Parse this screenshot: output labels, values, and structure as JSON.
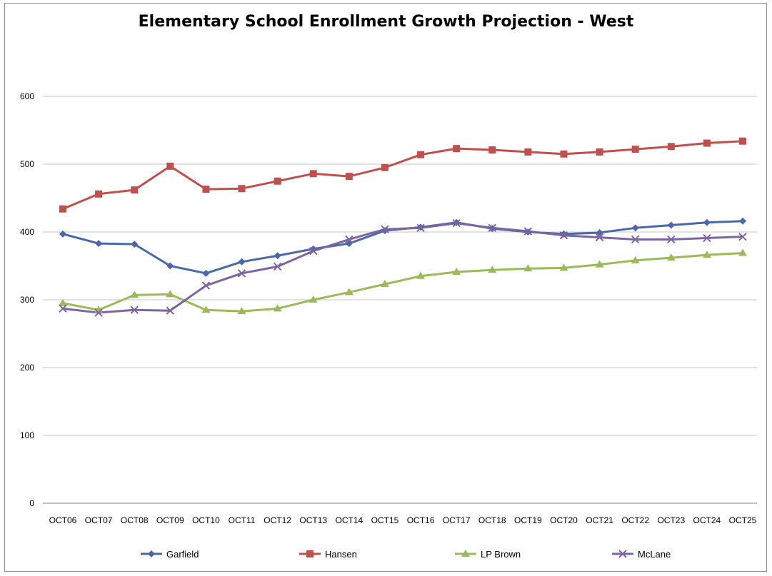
{
  "chart_data": {
    "type": "line",
    "title": "Elementary School Enrollment Growth Projection - West",
    "xlabel": "",
    "ylabel": "",
    "ylim": [
      0,
      600
    ],
    "yticks": [
      "0",
      "100",
      "200",
      "300",
      "400",
      "500",
      "600"
    ],
    "grid": true,
    "legend": "bottom",
    "categories": [
      "OCT06",
      "OCT07",
      "OCT08",
      "OCT09",
      "OCT10",
      "OCT11",
      "OCT12",
      "OCT13",
      "OCT14",
      "OCT15",
      "OCT16",
      "OCT17",
      "OCT18",
      "OCT19",
      "OCT20",
      "OCT21",
      "OCT22",
      "OCT23",
      "OCT24",
      "OCT25"
    ],
    "series": [
      {
        "name": "Garfield",
        "color": "#4a68a8",
        "marker": "diamond",
        "values": [
          397,
          383,
          382,
          350,
          339,
          356,
          365,
          375,
          383,
          402,
          407,
          414,
          405,
          400,
          397,
          399,
          406,
          410,
          414,
          416
        ]
      },
      {
        "name": "Hansen",
        "color": "#c0504d",
        "marker": "square",
        "values": [
          434,
          456,
          462,
          497,
          463,
          464,
          475,
          486,
          482,
          495,
          514,
          523,
          521,
          518,
          515,
          518,
          522,
          526,
          531,
          534
        ]
      },
      {
        "name": "LP Brown",
        "color": "#9bbb59",
        "marker": "triangle",
        "values": [
          295,
          285,
          307,
          308,
          285,
          283,
          287,
          300,
          311,
          323,
          335,
          341,
          344,
          346,
          347,
          352,
          358,
          362,
          366,
          369
        ]
      },
      {
        "name": "McLane",
        "color": "#8064a2",
        "marker": "x",
        "values": [
          287,
          281,
          285,
          284,
          321,
          339,
          349,
          372,
          389,
          404,
          406,
          413,
          406,
          401,
          395,
          392,
          389,
          389,
          391,
          393
        ]
      }
    ]
  }
}
